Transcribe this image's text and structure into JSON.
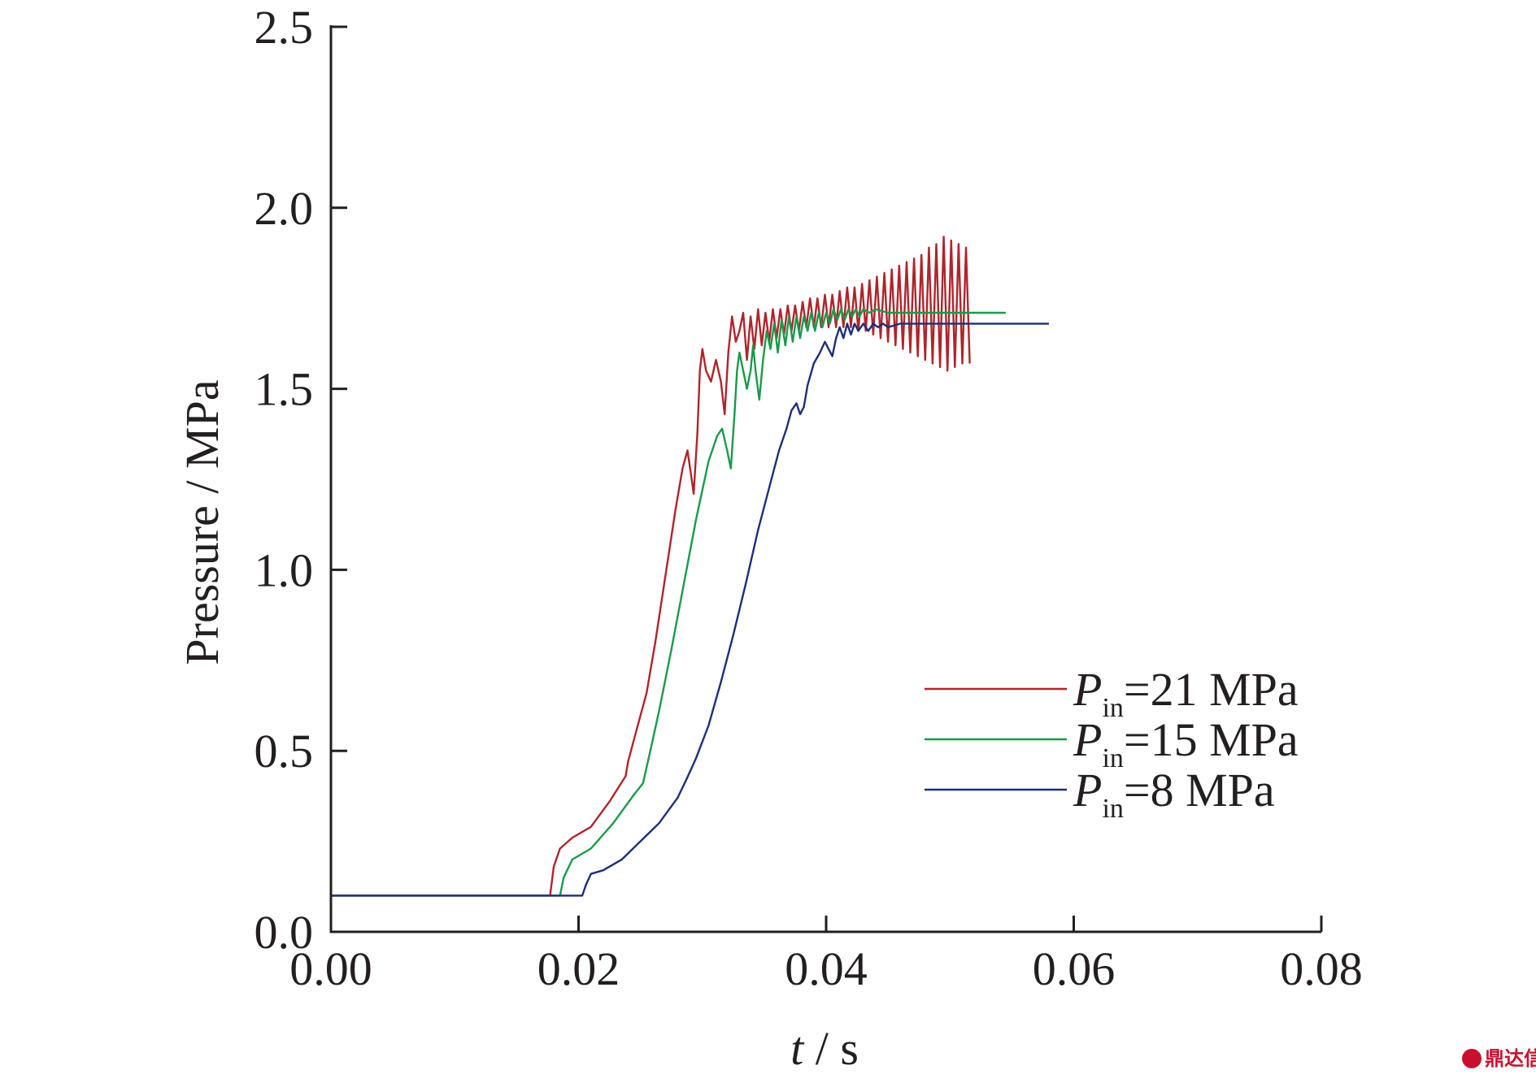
{
  "chart_data": {
    "type": "line",
    "title": "",
    "xlabel": {
      "var": "t",
      "unit": " / s"
    },
    "ylabel": "Pressure / MPa",
    "xlim": [
      0,
      0.08
    ],
    "ylim": [
      0,
      2.5
    ],
    "x_ticks": [
      "0.00",
      "0.02",
      "0.04",
      "0.06",
      "0.08"
    ],
    "y_ticks": [
      "0.0",
      "0.5",
      "1.0",
      "1.5",
      "2.0",
      "2.5"
    ],
    "grid": false,
    "legend_position": "lower-right",
    "series": [
      {
        "name": "Pin=21 MPa",
        "legend": {
          "main": "P",
          "sub": "in",
          "rest": "=21 MPa"
        },
        "color": "#b0242b",
        "points": [
          [
            0.0,
            0.1
          ],
          [
            0.0177,
            0.1
          ],
          [
            0.018,
            0.18
          ],
          [
            0.0185,
            0.23
          ],
          [
            0.0195,
            0.26
          ],
          [
            0.021,
            0.29
          ],
          [
            0.0225,
            0.36
          ],
          [
            0.0238,
            0.43
          ],
          [
            0.024,
            0.47
          ],
          [
            0.0247,
            0.56
          ],
          [
            0.0255,
            0.66
          ],
          [
            0.0262,
            0.8
          ],
          [
            0.027,
            0.98
          ],
          [
            0.0278,
            1.16
          ],
          [
            0.0284,
            1.28
          ],
          [
            0.0288,
            1.33
          ],
          [
            0.0291,
            1.26
          ],
          [
            0.0293,
            1.21
          ],
          [
            0.0296,
            1.38
          ],
          [
            0.0298,
            1.55
          ],
          [
            0.03,
            1.61
          ],
          [
            0.0303,
            1.55
          ],
          [
            0.0307,
            1.52
          ],
          [
            0.0311,
            1.58
          ],
          [
            0.0315,
            1.52
          ],
          [
            0.0318,
            1.43
          ],
          [
            0.0321,
            1.6
          ],
          [
            0.0324,
            1.7
          ],
          [
            0.0327,
            1.63
          ],
          [
            0.033,
            1.66
          ],
          [
            0.0333,
            1.71
          ],
          [
            0.0336,
            1.58
          ],
          [
            0.0339,
            1.7
          ],
          [
            0.0342,
            1.61
          ],
          [
            0.0345,
            1.72
          ],
          [
            0.0348,
            1.62
          ],
          [
            0.0351,
            1.71
          ],
          [
            0.0354,
            1.63
          ],
          [
            0.0357,
            1.72
          ],
          [
            0.036,
            1.64
          ],
          [
            0.0363,
            1.72
          ],
          [
            0.0366,
            1.65
          ],
          [
            0.0369,
            1.73
          ],
          [
            0.0372,
            1.66
          ],
          [
            0.0375,
            1.73
          ],
          [
            0.0378,
            1.66
          ],
          [
            0.0381,
            1.74
          ],
          [
            0.0384,
            1.67
          ],
          [
            0.0387,
            1.75
          ],
          [
            0.039,
            1.67
          ],
          [
            0.0393,
            1.75
          ],
          [
            0.0396,
            1.67
          ],
          [
            0.0399,
            1.76
          ],
          [
            0.0402,
            1.67
          ],
          [
            0.0405,
            1.76
          ],
          [
            0.0408,
            1.67
          ],
          [
            0.0411,
            1.77
          ],
          [
            0.0414,
            1.67
          ],
          [
            0.0417,
            1.78
          ],
          [
            0.042,
            1.67
          ],
          [
            0.0423,
            1.78
          ],
          [
            0.0426,
            1.66
          ],
          [
            0.0429,
            1.79
          ],
          [
            0.0432,
            1.66
          ],
          [
            0.0435,
            1.8
          ],
          [
            0.0438,
            1.65
          ],
          [
            0.0441,
            1.81
          ],
          [
            0.0444,
            1.64
          ],
          [
            0.0447,
            1.82
          ],
          [
            0.045,
            1.63
          ],
          [
            0.0453,
            1.83
          ],
          [
            0.0456,
            1.62
          ],
          [
            0.0459,
            1.84
          ],
          [
            0.0462,
            1.61
          ],
          [
            0.0465,
            1.85
          ],
          [
            0.0468,
            1.6
          ],
          [
            0.0471,
            1.86
          ],
          [
            0.0474,
            1.59
          ],
          [
            0.0477,
            1.87
          ],
          [
            0.048,
            1.58
          ],
          [
            0.0483,
            1.89
          ],
          [
            0.0486,
            1.57
          ],
          [
            0.0489,
            1.9
          ],
          [
            0.0492,
            1.56
          ],
          [
            0.0495,
            1.92
          ],
          [
            0.0498,
            1.55
          ],
          [
            0.0501,
            1.91
          ],
          [
            0.0504,
            1.56
          ],
          [
            0.0507,
            1.9
          ],
          [
            0.051,
            1.57
          ],
          [
            0.0513,
            1.89
          ],
          [
            0.0516,
            1.57
          ]
        ]
      },
      {
        "name": "Pin=15 MPa",
        "legend": {
          "main": "P",
          "sub": "in",
          "rest": "=15 MPa"
        },
        "color": "#1a9a4a",
        "points": [
          [
            0.0,
            0.1
          ],
          [
            0.0185,
            0.1
          ],
          [
            0.0188,
            0.15
          ],
          [
            0.0195,
            0.2
          ],
          [
            0.021,
            0.23
          ],
          [
            0.0228,
            0.3
          ],
          [
            0.0245,
            0.38
          ],
          [
            0.0252,
            0.41
          ],
          [
            0.0258,
            0.5
          ],
          [
            0.0265,
            0.61
          ],
          [
            0.0275,
            0.78
          ],
          [
            0.0285,
            0.96
          ],
          [
            0.0295,
            1.14
          ],
          [
            0.0305,
            1.3
          ],
          [
            0.0312,
            1.37
          ],
          [
            0.0316,
            1.39
          ],
          [
            0.032,
            1.33
          ],
          [
            0.0323,
            1.28
          ],
          [
            0.0326,
            1.43
          ],
          [
            0.0328,
            1.55
          ],
          [
            0.033,
            1.6
          ],
          [
            0.0333,
            1.55
          ],
          [
            0.0336,
            1.5
          ],
          [
            0.0339,
            1.55
          ],
          [
            0.0341,
            1.62
          ],
          [
            0.0343,
            1.55
          ],
          [
            0.0346,
            1.47
          ],
          [
            0.0349,
            1.58
          ],
          [
            0.0352,
            1.66
          ],
          [
            0.0355,
            1.61
          ],
          [
            0.0358,
            1.68
          ],
          [
            0.0361,
            1.6
          ],
          [
            0.0364,
            1.69
          ],
          [
            0.0367,
            1.62
          ],
          [
            0.037,
            1.7
          ],
          [
            0.0373,
            1.63
          ],
          [
            0.0376,
            1.7
          ],
          [
            0.0379,
            1.64
          ],
          [
            0.0382,
            1.7
          ],
          [
            0.0385,
            1.66
          ],
          [
            0.0388,
            1.71
          ],
          [
            0.0391,
            1.66
          ],
          [
            0.0394,
            1.71
          ],
          [
            0.0397,
            1.67
          ],
          [
            0.04,
            1.71
          ],
          [
            0.0403,
            1.68
          ],
          [
            0.0406,
            1.72
          ],
          [
            0.0409,
            1.69
          ],
          [
            0.0412,
            1.72
          ],
          [
            0.0415,
            1.69
          ],
          [
            0.0418,
            1.72
          ],
          [
            0.0421,
            1.7
          ],
          [
            0.0424,
            1.72
          ],
          [
            0.0427,
            1.7
          ],
          [
            0.043,
            1.72
          ],
          [
            0.0435,
            1.71
          ],
          [
            0.044,
            1.72
          ],
          [
            0.045,
            1.71
          ],
          [
            0.046,
            1.71
          ],
          [
            0.0545,
            1.71
          ]
        ]
      },
      {
        "name": "Pin=8 MPa",
        "legend": {
          "main": "P",
          "sub": "in",
          "rest": "=8 MPa"
        },
        "color": "#1c2f7a",
        "points": [
          [
            0.0,
            0.1
          ],
          [
            0.0203,
            0.1
          ],
          [
            0.0206,
            0.13
          ],
          [
            0.021,
            0.16
          ],
          [
            0.022,
            0.17
          ],
          [
            0.0235,
            0.2
          ],
          [
            0.025,
            0.25
          ],
          [
            0.0265,
            0.3
          ],
          [
            0.028,
            0.37
          ],
          [
            0.0287,
            0.42
          ],
          [
            0.0295,
            0.48
          ],
          [
            0.0305,
            0.57
          ],
          [
            0.0315,
            0.69
          ],
          [
            0.0325,
            0.82
          ],
          [
            0.0335,
            0.96
          ],
          [
            0.0345,
            1.11
          ],
          [
            0.0355,
            1.24
          ],
          [
            0.0362,
            1.33
          ],
          [
            0.0368,
            1.39
          ],
          [
            0.0372,
            1.44
          ],
          [
            0.0376,
            1.46
          ],
          [
            0.0379,
            1.43
          ],
          [
            0.0382,
            1.45
          ],
          [
            0.0385,
            1.51
          ],
          [
            0.039,
            1.57
          ],
          [
            0.0395,
            1.6
          ],
          [
            0.0399,
            1.63
          ],
          [
            0.0402,
            1.61
          ],
          [
            0.0405,
            1.59
          ],
          [
            0.0408,
            1.64
          ],
          [
            0.0411,
            1.67
          ],
          [
            0.0414,
            1.64
          ],
          [
            0.0417,
            1.68
          ],
          [
            0.042,
            1.65
          ],
          [
            0.0423,
            1.68
          ],
          [
            0.0426,
            1.66
          ],
          [
            0.043,
            1.68
          ],
          [
            0.0434,
            1.66
          ],
          [
            0.0438,
            1.68
          ],
          [
            0.0442,
            1.67
          ],
          [
            0.0446,
            1.68
          ],
          [
            0.045,
            1.67
          ],
          [
            0.046,
            1.68
          ],
          [
            0.058,
            1.68
          ]
        ]
      }
    ]
  },
  "watermark": {
    "text": "鼎达信"
  }
}
